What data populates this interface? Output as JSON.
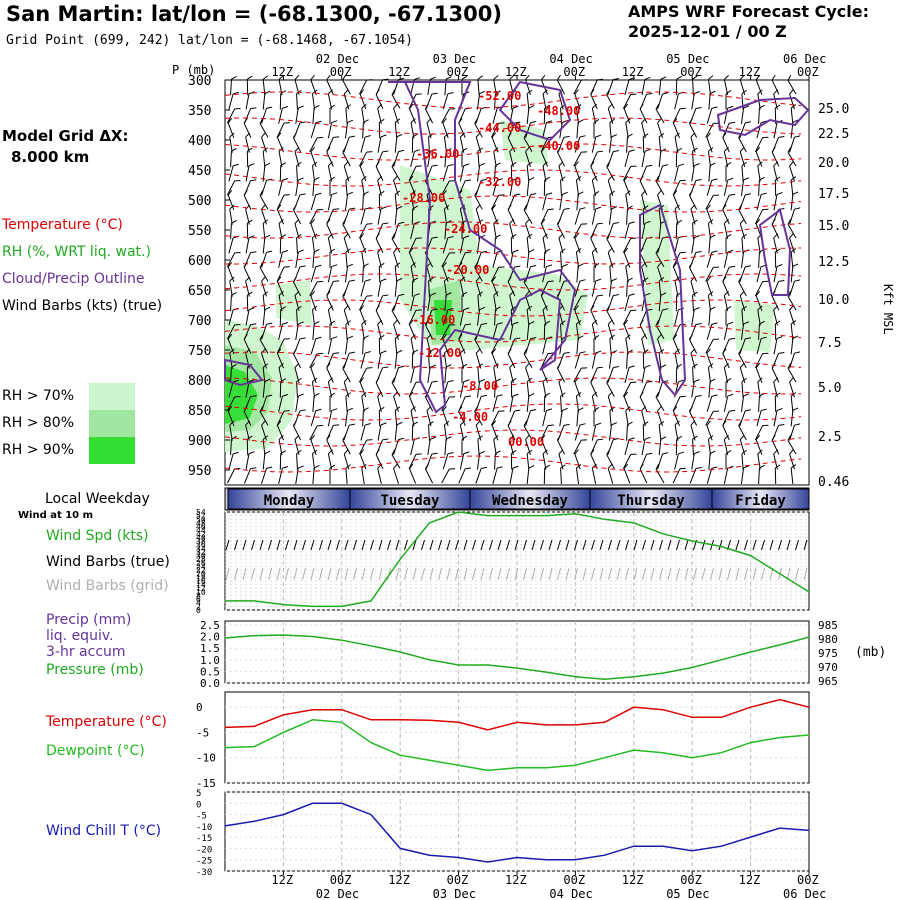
{
  "header": {
    "title": "San Martin:  lat/lon = (-68.1300, -67.1300)",
    "grid_point": "Grid Point (699, 242) lat/lon = (-68.1468, -67.1054)",
    "forecast_line1": "AMPS WRF Forecast Cycle:",
    "forecast_line2": "2025-12-01 / 00  Z"
  },
  "model_grid": {
    "label": "Model Grid ΔX:",
    "value": "8.000 km"
  },
  "legend": {
    "temperature": "Temperature (°C)",
    "rh": "RH (%, WRT liq. wat.)",
    "cloud": "Cloud/Precip Outline",
    "wind": "Wind Barbs (kts) (true)",
    "rh70": "RH > 70%",
    "rh80": "RH > 80%",
    "rh90": "RH > 90%"
  },
  "side_labels": {
    "weekday": "Local Weekday",
    "wind10": "Wind at 10 m",
    "wspd": "Wind Spd (kts)",
    "wbarb_true": "Wind Barbs (true)",
    "wbarb_grid": "Wind Barbs (grid)",
    "precip1": "Precip (mm)",
    "precip2": "liq. equiv.",
    "precip3": "3-hr accum",
    "pressure": "Pressure (mb)",
    "temp": "Temperature (°C)",
    "dew": "Dewpoint (°C)",
    "windchill": "Wind Chill T (°C)",
    "mb_unit": "(mb)",
    "p_unit": "P (mb)",
    "kft_unit": "Kft MSL"
  },
  "colors": {
    "temperature": "#dd0000",
    "rh70": "#ccf5cc",
    "rh80": "#a0e6a0",
    "rh90": "#33dd33",
    "cloud": "#663399",
    "wind_speed": "#22aa22",
    "pressure": "#22aa22",
    "dewpoint": "#22bb22",
    "wind_chill": "#1a1ab0",
    "grid_barbs": "#b0b0b0"
  },
  "chart_data": [
    {
      "type": "heatmap",
      "name": "time-pressure cross section",
      "x_ticks_top": [
        "12Z",
        "00Z",
        "12Z",
        "00Z",
        "12Z",
        "00Z",
        "12Z",
        "00Z",
        "12Z",
        "00Z"
      ],
      "x_dates_top": [
        "02 Dec",
        "03 Dec",
        "04 Dec",
        "05 Dec",
        "06 Dec"
      ],
      "y_ticks_mb": [
        300,
        350,
        400,
        450,
        500,
        550,
        600,
        650,
        700,
        750,
        800,
        850,
        900,
        950
      ],
      "y_ticks_kft": [
        "25.0",
        "22.5",
        "20.0",
        "17.5",
        "15.0",
        "12.5",
        "10.0",
        "7.5",
        "5.0",
        "2.5",
        "0.46"
      ],
      "temperature_contour_labels": [
        "-52.00",
        "-48.00",
        "-44.00",
        "-40.00",
        "-36.00",
        "-32.00",
        "-28.00",
        "-24.00",
        "-20.00",
        "-16.00",
        "-12.00",
        "-8.00",
        "-4.00",
        "00.00"
      ],
      "weekdays": [
        "Monday",
        "Tuesday",
        "Wednesday",
        "Thursday",
        "Friday"
      ]
    },
    {
      "type": "line",
      "name": "surface wind speed",
      "y_ticks": [
        0,
        2,
        4,
        6,
        8,
        10,
        12,
        14,
        16,
        18,
        20,
        22,
        24,
        26,
        28,
        30,
        32,
        34,
        36,
        38,
        40,
        42,
        44,
        46,
        48,
        50,
        52,
        54
      ],
      "ylim": [
        0,
        54
      ],
      "t_hours": [
        0,
        6,
        12,
        18,
        24,
        30,
        36,
        42,
        48,
        54,
        60,
        66,
        72,
        78,
        84,
        90,
        96,
        102,
        108,
        114,
        120
      ],
      "series": [
        {
          "values": [
            5,
            5,
            3,
            2,
            2,
            5,
            28,
            48,
            54,
            52,
            52,
            52,
            53,
            50,
            48,
            42,
            38,
            35,
            30,
            20,
            10
          ]
        }
      ]
    },
    {
      "type": "line",
      "name": "precip and pressure",
      "y_ticks_left": [
        "2.5",
        "2.0",
        "1.5",
        "1.0",
        "0.5",
        "0.0"
      ],
      "y_ticks_right": [
        "985",
        "980",
        "975",
        "970",
        "965"
      ],
      "ylim_right": [
        965,
        985
      ],
      "t_hours": [
        0,
        6,
        12,
        18,
        24,
        30,
        36,
        42,
        48,
        54,
        60,
        66,
        72,
        78,
        84,
        90,
        96,
        102,
        108,
        114,
        120
      ],
      "series": [
        {
          "values": [
            979.5,
            980.3,
            980.5,
            980.0,
            978.8,
            977.0,
            975.0,
            972.5,
            970.8,
            970.8,
            969.8,
            968.5,
            967.0,
            966.2,
            967.0,
            968.2,
            970.0,
            972.5,
            975.0,
            977.3,
            979.8
          ]
        }
      ]
    },
    {
      "type": "line",
      "name": "temperature and dewpoint",
      "y_ticks": [
        0,
        -5,
        -10,
        -15
      ],
      "ylim": [
        -15,
        3
      ],
      "t_hours": [
        0,
        6,
        12,
        18,
        24,
        30,
        36,
        42,
        48,
        54,
        60,
        66,
        72,
        78,
        84,
        90,
        96,
        102,
        108,
        114,
        120
      ],
      "series": [
        {
          "values": [
            -4.0,
            -3.8,
            -1.5,
            -0.5,
            -0.5,
            -2.5,
            -2.5,
            -2.6,
            -3.0,
            -4.5,
            -3.0,
            -3.5,
            -3.5,
            -3.0,
            0.0,
            -0.5,
            -2.0,
            -2.0,
            0.0,
            1.5,
            0.0
          ]
        },
        {
          "values": [
            -8.0,
            -7.8,
            -5.0,
            -2.5,
            -3.0,
            -7.0,
            -9.5,
            -10.5,
            -11.5,
            -12.5,
            -12.0,
            -12.0,
            -11.5,
            -10.0,
            -8.5,
            -9.0,
            -10.0,
            -9.0,
            -7.0,
            -6.0,
            -5.5
          ]
        }
      ]
    },
    {
      "type": "line",
      "name": "wind chill",
      "y_ticks": [
        5,
        0,
        -5,
        -10,
        -15,
        -20,
        -25,
        -30
      ],
      "ylim": [
        -30,
        5
      ],
      "t_hours": [
        0,
        6,
        12,
        18,
        24,
        30,
        36,
        42,
        48,
        54,
        60,
        66,
        72,
        78,
        84,
        90,
        96,
        102,
        108,
        114,
        120
      ],
      "series": [
        {
          "values": [
            -10,
            -8,
            -5,
            0,
            0,
            -5,
            -20,
            -23,
            -24,
            -26,
            -24,
            -25,
            -25,
            -23,
            -19,
            -19,
            -21,
            -19,
            -15,
            -11,
            -12
          ]
        }
      ]
    }
  ],
  "bottom_axis": {
    "ticks": [
      "12Z",
      "00Z",
      "12Z",
      "00Z",
      "12Z",
      "00Z",
      "12Z",
      "00Z",
      "12Z",
      "00Z"
    ],
    "dates": [
      "02 Dec",
      "03 Dec",
      "04 Dec",
      "05 Dec",
      "06 Dec"
    ]
  }
}
